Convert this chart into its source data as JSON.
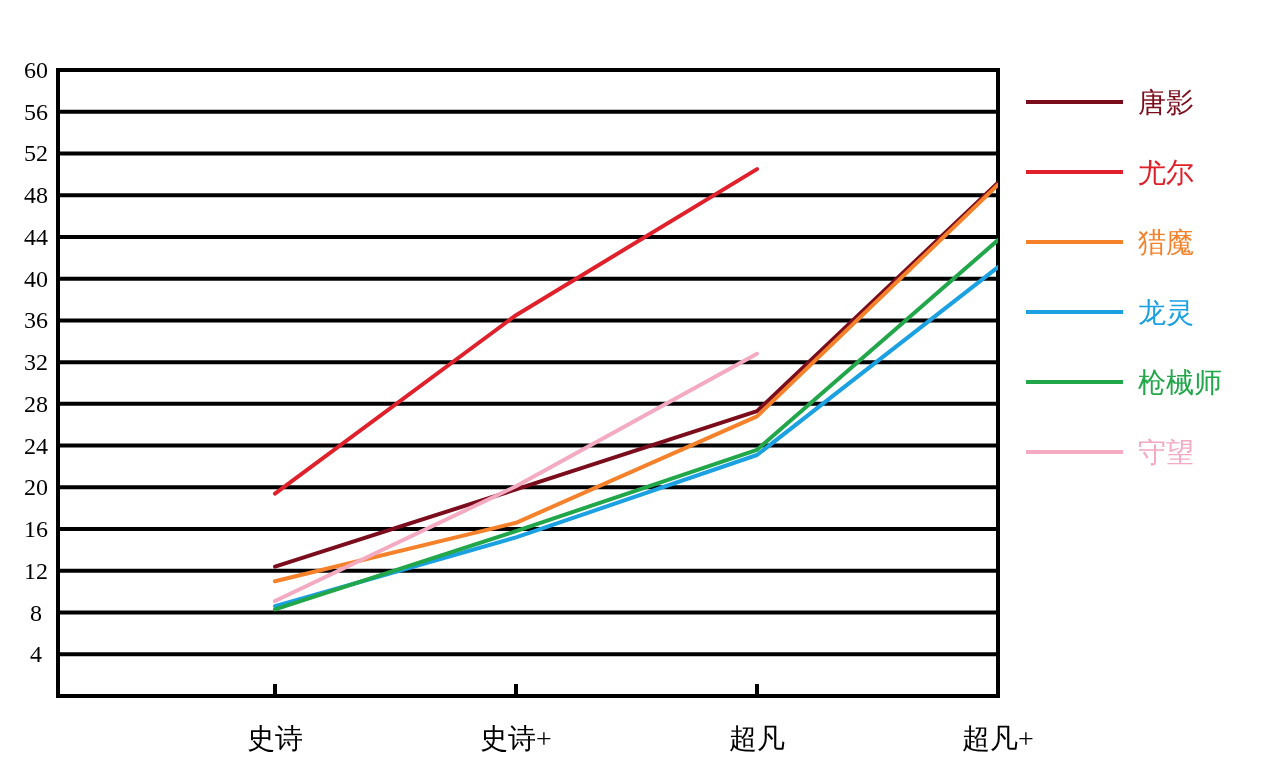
{
  "chart_data": {
    "type": "line",
    "categories": [
      "史诗",
      "史诗+",
      "超凡",
      "超凡+"
    ],
    "ylim": [
      0,
      60
    ],
    "yticks": [
      4,
      8,
      12,
      16,
      20,
      24,
      28,
      32,
      36,
      40,
      44,
      48,
      52,
      56,
      60
    ],
    "grid": "y",
    "legend": "right",
    "line_style": "solid",
    "marker": "none",
    "series": [
      {
        "name": "唐影",
        "color": "#7b0c1c",
        "values": [
          12.4,
          19.8,
          27.3,
          49.2
        ]
      },
      {
        "name": "尤尔",
        "color": "#e0202a",
        "values": [
          19.4,
          36.5,
          50.5,
          null
        ]
      },
      {
        "name": "猎魔",
        "color": "#f5822a",
        "values": [
          11,
          16.6,
          26.8,
          49
        ]
      },
      {
        "name": "龙灵",
        "color": "#1ba1e2",
        "values": [
          8.6,
          15.2,
          23.1,
          41.1
        ]
      },
      {
        "name": "枪械师",
        "color": "#21a74a",
        "values": [
          8.3,
          15.8,
          23.6,
          43.7
        ]
      },
      {
        "name": "守望",
        "color": "#f4aac0",
        "values": [
          9.1,
          20.1,
          32.8,
          null
        ]
      }
    ]
  }
}
